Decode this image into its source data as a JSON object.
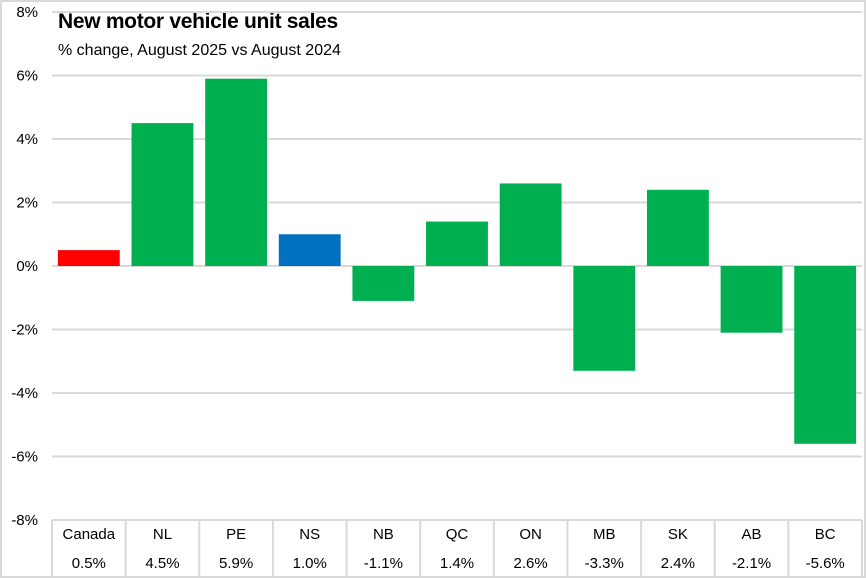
{
  "chart_data": {
    "type": "bar",
    "title": "New motor vehicle unit sales",
    "subtitle": "% change, August 2025 vs August 2024",
    "categories": [
      "Canada",
      "NL",
      "PE",
      "NS",
      "NB",
      "QC",
      "ON",
      "MB",
      "SK",
      "AB",
      "BC"
    ],
    "values": [
      0.5,
      4.5,
      5.9,
      1.0,
      -1.1,
      1.4,
      2.6,
      -3.3,
      2.4,
      -2.1,
      -5.6
    ],
    "value_labels": [
      "0.5%",
      "4.5%",
      "5.9%",
      "1.0%",
      "-1.1%",
      "1.4%",
      "2.6%",
      "-3.3%",
      "2.4%",
      "-2.1%",
      "-5.6%"
    ],
    "colors": [
      "#ff0000",
      "#00b050",
      "#00b050",
      "#0070c0",
      "#00b050",
      "#00b050",
      "#00b050",
      "#00b050",
      "#00b050",
      "#00b050",
      "#00b050"
    ],
    "xlabel": "",
    "ylabel": "",
    "ylim": [
      -8,
      8
    ],
    "yticks": [
      8,
      6,
      4,
      2,
      0,
      -2,
      -4,
      -6,
      -8
    ],
    "ytick_labels": [
      "8%",
      "6%",
      "4%",
      "2%",
      "0%",
      "-2%",
      "-4%",
      "-6%",
      "-8%"
    ],
    "grid": true,
    "legend": "none",
    "data_table": true
  }
}
